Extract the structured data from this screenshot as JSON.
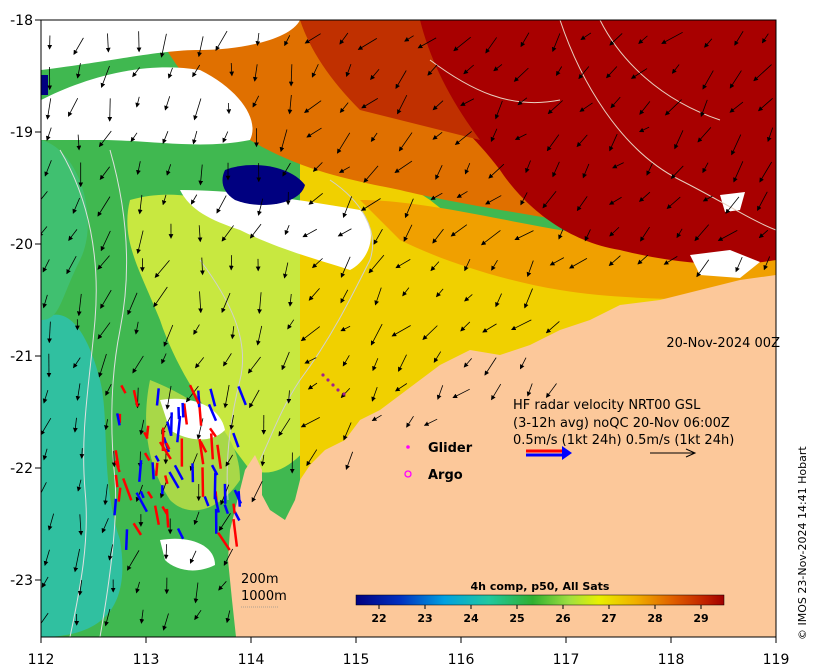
{
  "map": {
    "x_ticks": [
      "112",
      "113",
      "114",
      "115",
      "116",
      "117",
      "118",
      "119"
    ],
    "y_ticks": [
      "-18",
      "-19",
      "-20",
      "-21",
      "-22",
      "-23"
    ],
    "timestamp": "20-Nov-2024 00Z",
    "credit": "© IMOS 23-Nov-2024 14:41 Hobart",
    "colors": {
      "land": "#fcc89a",
      "warm": "#a80000",
      "cloud": "#ffffff",
      "frame": "#000000"
    }
  },
  "legend": {
    "hf_line1": "HF radar velocity  NRT00 GSL",
    "hf_line2": "(3-12h avg) noQC 20-Nov 06:00Z",
    "hf_line3": "0.5m/s (1kt 24h)  0.5m/s (1kt 24h)",
    "glider_label": "Glider",
    "argo_label": "Argo",
    "contour_200": "200m",
    "contour_1000": "1000m",
    "glider_color": "#ff00ff",
    "argo_color": "#ff00ff",
    "hf_arrow_colors": [
      "#ff0000",
      "#0000ff"
    ]
  },
  "colorbar": {
    "title": "4h comp, p50, All Sats",
    "ticks": [
      "22",
      "23",
      "24",
      "25",
      "26",
      "27",
      "28",
      "29"
    ],
    "range": [
      21.5,
      29.5
    ],
    "unit": "°C"
  }
}
